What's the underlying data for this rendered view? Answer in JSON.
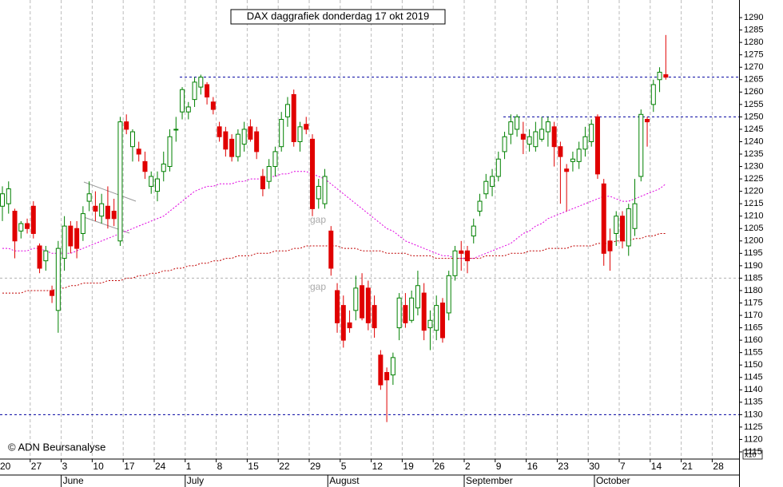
{
  "chart_data": {
    "type": "candlestick",
    "title": "DAX daggrafiek donderdag 17 okt 2019",
    "credit": "© ADN Beursanalyse",
    "scale_note": "x10",
    "annotations": [
      "gap",
      "gap"
    ],
    "categories": [
      "20",
      null,
      null,
      null,
      null,
      "27",
      null,
      null,
      null,
      null,
      "3",
      null,
      null,
      null,
      null,
      "10",
      null,
      null,
      null,
      null,
      "17",
      null,
      null,
      null,
      null,
      "24",
      null,
      null,
      null,
      null,
      "1",
      null,
      null,
      null,
      null,
      "8",
      null,
      null,
      null,
      null,
      "15",
      null,
      null,
      null,
      null,
      "22",
      null,
      null,
      null,
      null,
      "29",
      null,
      null,
      null,
      null,
      "5",
      null,
      null,
      null,
      null,
      "12",
      null,
      null,
      null,
      null,
      "19",
      null,
      null,
      null,
      null,
      "26",
      null,
      null,
      null,
      null,
      "2",
      null,
      null,
      null,
      null,
      "9",
      null,
      null,
      null,
      null,
      "16",
      null,
      null,
      null,
      null,
      "23",
      null,
      null,
      null,
      null,
      "30",
      null,
      null,
      null,
      null,
      "7",
      null,
      null,
      null,
      null,
      "14",
      null,
      null,
      null,
      null,
      "21",
      null,
      null,
      null,
      null,
      "28",
      null,
      null,
      null,
      null
    ],
    "months": [
      null,
      null,
      null,
      null,
      null,
      null,
      null,
      null,
      null,
      null,
      "June",
      null,
      null,
      null,
      null,
      null,
      null,
      null,
      null,
      null,
      null,
      null,
      null,
      null,
      null,
      null,
      null,
      null,
      null,
      null,
      "July",
      null,
      null,
      null,
      null,
      null,
      null,
      null,
      null,
      null,
      null,
      null,
      null,
      null,
      null,
      null,
      null,
      null,
      null,
      null,
      null,
      null,
      null,
      "August",
      null,
      null,
      null,
      null,
      null,
      null,
      null,
      null,
      null,
      null,
      null,
      null,
      null,
      null,
      null,
      null,
      null,
      null,
      null,
      null,
      null,
      "September",
      null,
      null,
      null,
      null,
      null,
      null,
      null,
      null,
      null,
      null,
      null,
      null,
      null,
      null,
      null,
      null,
      null,
      null,
      null,
      null,
      "October",
      null,
      null,
      null,
      null,
      null,
      null,
      null,
      null,
      null,
      null,
      null,
      null,
      null,
      null,
      null,
      null,
      null,
      null,
      null,
      null,
      null,
      null,
      null
    ],
    "ohlc": {
      "open": [
        1214,
        1215,
        1212,
        1204,
        1207,
        1214,
        1198,
        1192,
        1180,
        1172,
        1193,
        1206,
        1205,
        1203,
        1216,
        1214,
        1210,
        1214,
        1212,
        1200,
        1248,
        1238,
        1237,
        1232,
        1222,
        1220,
        1228,
        1230,
        1245,
        1252,
        1252,
        1257,
        1262,
        1263,
        1256,
        1246,
        1244,
        1241,
        1234,
        1239,
        1246,
        1244,
        1226,
        1224,
        1230,
        1238,
        1250,
        1259,
        1240,
        1247,
        1241,
        1217,
        1215,
        1204,
        1180,
        1174,
        1167,
        1172,
        1182,
        1181,
        1174,
        1154,
        1147,
        1146,
        1165,
        1174,
        1168,
        1173,
        1179,
        1165,
        1164,
        1175,
        1171,
        1186,
        1196,
        1196,
        1202,
        1212,
        1219,
        1222,
        1226,
        1236,
        1243,
        1245,
        1243,
        1239,
        1238,
        1241,
        1244,
        1246,
        1238,
        1229,
        1232,
        1232,
        1237,
        1240,
        1250,
        1223,
        1200,
        1203,
        1210,
        1198,
        1205,
        1226,
        1249,
        1255,
        1265,
        1267,
        null,
        null,
        null,
        null,
        null,
        null,
        null,
        null,
        null,
        null,
        null,
        null
      ],
      "high": [
        1222,
        1224,
        1213,
        1208,
        1209,
        1216,
        1199,
        1198,
        1182,
        1200,
        1210,
        1208,
        1208,
        1214,
        1224,
        1220,
        1219,
        1222,
        1217,
        1250,
        1251,
        1245,
        1240,
        1236,
        1228,
        1228,
        1236,
        1245,
        1250,
        1262,
        1256,
        1266,
        1267,
        1264,
        1258,
        1248,
        1246,
        1243,
        1245,
        1248,
        1249,
        1246,
        1229,
        1233,
        1238,
        1252,
        1258,
        1261,
        1248,
        1250,
        1243,
        1225,
        1229,
        1206,
        1183,
        1178,
        1172,
        1186,
        1187,
        1184,
        1178,
        1156,
        1149,
        1155,
        1179,
        1179,
        1180,
        1188,
        1183,
        1172,
        1178,
        1177,
        1188,
        1198,
        1200,
        1198,
        1209,
        1219,
        1227,
        1229,
        1236,
        1244,
        1251,
        1251,
        1248,
        1245,
        1248,
        1250,
        1250,
        1248,
        1240,
        1231,
        1236,
        1240,
        1246,
        1249,
        1251,
        1225,
        1205,
        1212,
        1212,
        1215,
        1225,
        1253,
        1250,
        1265,
        1270,
        1283,
        null,
        null,
        null,
        null,
        null,
        null,
        null,
        null,
        null,
        null,
        null,
        null
      ],
      "low": [
        1208,
        1211,
        1193,
        1201,
        1203,
        1201,
        1187,
        1188,
        1175,
        1163,
        1188,
        1195,
        1193,
        1200,
        1212,
        1208,
        1207,
        1205,
        1206,
        1198,
        1243,
        1232,
        1232,
        1225,
        1219,
        1216,
        1224,
        1228,
        1240,
        1249,
        1249,
        1254,
        1259,
        1255,
        1251,
        1240,
        1234,
        1232,
        1232,
        1236,
        1240,
        1233,
        1218,
        1221,
        1226,
        1236,
        1246,
        1238,
        1236,
        1243,
        1210,
        1213,
        1213,
        1186,
        1163,
        1157,
        1163,
        1168,
        1168,
        1164,
        1161,
        1140,
        1127,
        1142,
        1160,
        1165,
        1167,
        1170,
        1160,
        1156,
        1160,
        1159,
        1168,
        1184,
        1188,
        1187,
        1199,
        1210,
        1217,
        1218,
        1224,
        1233,
        1239,
        1242,
        1235,
        1236,
        1236,
        1240,
        1238,
        1230,
        1215,
        1212,
        1228,
        1229,
        1234,
        1238,
        1225,
        1190,
        1188,
        1198,
        1197,
        1194,
        1202,
        1224,
        1238,
        1252,
        1260,
        1265,
        null,
        null,
        null,
        null,
        null,
        null,
        null,
        null,
        null,
        null,
        null,
        null
      ],
      "close": [
        1219,
        1221,
        1200,
        1207,
        1205,
        1203,
        1189,
        1196,
        1178,
        1197,
        1206,
        1198,
        1197,
        1211,
        1219,
        1212,
        1215,
        1209,
        1209,
        1248,
        1245,
        1244,
        1235,
        1228,
        1226,
        1225,
        1231,
        1242,
        1245,
        1261,
        1254,
        1264,
        1266,
        1258,
        1253,
        1242,
        1237,
        1234,
        1243,
        1245,
        1241,
        1236,
        1221,
        1230,
        1236,
        1249,
        1255,
        1240,
        1246,
        1245,
        1213,
        1222,
        1226,
        1189,
        1167,
        1160,
        1165,
        1181,
        1169,
        1167,
        1165,
        1142,
        1144,
        1153,
        1177,
        1167,
        1177,
        1182,
        1164,
        1168,
        1174,
        1161,
        1186,
        1196,
        1195,
        1192,
        1206,
        1216,
        1224,
        1226,
        1233,
        1242,
        1248,
        1250,
        1241,
        1242,
        1244,
        1245,
        1248,
        1238,
        1234,
        1228,
        1233,
        1237,
        1242,
        1247,
        1227,
        1195,
        1196,
        1210,
        1200,
        1213,
        1215,
        1251,
        1248,
        1263,
        1268,
        1266,
        null,
        null,
        null,
        null,
        null,
        null,
        null,
        null,
        null,
        null,
        null,
        null
      ]
    },
    "up_color": "#008000",
    "down_color": "#e00000",
    "moving_averages": [
      {
        "color": "#e000e0",
        "values": [
          1197,
          1197,
          1196,
          1196,
          1196,
          1197,
          1197,
          1196,
          1195,
          1195,
          1195,
          1195,
          1196,
          1197,
          1198,
          1199,
          1200,
          1201,
          1202,
          1203,
          1204,
          1205,
          1206,
          1207,
          1208,
          1209,
          1210,
          1212,
          1214,
          1216,
          1218,
          1220,
          1221,
          1222,
          1222,
          1223,
          1223,
          1223,
          1224,
          1224,
          1225,
          1225,
          1225,
          1226,
          1226,
          1227,
          1227,
          1228,
          1228,
          1228,
          1227,
          1226,
          1225,
          1223,
          1221,
          1219,
          1217,
          1215,
          1213,
          1211,
          1209,
          1207,
          1205,
          1204,
          1202,
          1200,
          1199,
          1198,
          1197,
          1196,
          1195,
          1194,
          1194,
          1193,
          1193,
          1193,
          1193,
          1194,
          1195,
          1196,
          1197,
          1198,
          1199,
          1201,
          1203,
          1204,
          1206,
          1207,
          1209,
          1210,
          1211,
          1212,
          1213,
          1214,
          1215,
          1216,
          1217,
          1218,
          1218,
          1217,
          1216,
          1216,
          1217,
          1218,
          1219,
          1220,
          1221,
          1223,
          null,
          null,
          null,
          null,
          null,
          null,
          null,
          null,
          null,
          null,
          null,
          null
        ]
      },
      {
        "color": "#c00000",
        "values": [
          1179,
          1179,
          1179,
          1179,
          1180,
          1180,
          1180,
          1180,
          1180,
          1181,
          1181,
          1182,
          1182,
          1183,
          1183,
          1183,
          1183,
          1184,
          1184,
          1184,
          1185,
          1185,
          1186,
          1186,
          1187,
          1187,
          1188,
          1188,
          1189,
          1189,
          1190,
          1190,
          1191,
          1191,
          1192,
          1192,
          1193,
          1193,
          1194,
          1194,
          1194,
          1195,
          1195,
          1195,
          1196,
          1196,
          1196,
          1197,
          1197,
          1198,
          1198,
          1198,
          1198,
          1198,
          1198,
          1197,
          1197,
          1197,
          1196,
          1196,
          1196,
          1196,
          1195,
          1195,
          1195,
          1195,
          1194,
          1194,
          1194,
          1194,
          1193,
          1193,
          1193,
          1193,
          1193,
          1193,
          1193,
          1193,
          1194,
          1194,
          1194,
          1194,
          1195,
          1195,
          1195,
          1196,
          1196,
          1196,
          1197,
          1197,
          1197,
          1197,
          1198,
          1198,
          1198,
          1198,
          1199,
          1199,
          1199,
          1200,
          1200,
          1200,
          1201,
          1201,
          1202,
          1202,
          1203,
          1203,
          null,
          null,
          null,
          null,
          null,
          null,
          null,
          null,
          null,
          null,
          null,
          null
        ]
      }
    ],
    "reference_lines": [
      {
        "value": 1266,
        "color": "#0000a0"
      },
      {
        "value": 1250,
        "color": "#0000a0"
      },
      {
        "value": 1130,
        "color": "#0000a0"
      },
      {
        "value": 1185,
        "color": "#b0b0b0"
      }
    ],
    "ylim": [
      1112.1,
      1297.1
    ],
    "yticks": [
      1115,
      1120,
      1125,
      1130,
      1135,
      1140,
      1145,
      1150,
      1155,
      1160,
      1165,
      1170,
      1175,
      1180,
      1185,
      1190,
      1195,
      1200,
      1205,
      1210,
      1215,
      1220,
      1225,
      1230,
      1235,
      1240,
      1245,
      1250,
      1255,
      1260,
      1265,
      1270,
      1275,
      1280,
      1285,
      1290
    ],
    "grid": true
  }
}
